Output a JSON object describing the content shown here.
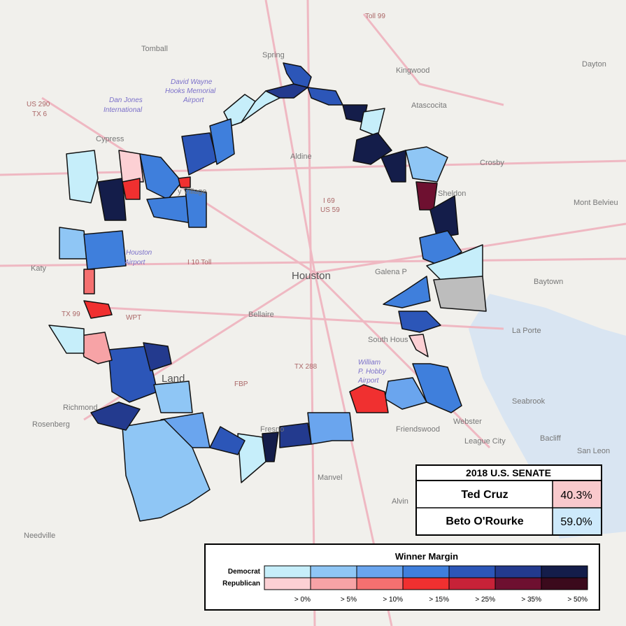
{
  "map": {
    "labels": [
      "Tomball",
      "Spring",
      "Kingwood",
      "Dayton",
      "Toll 99",
      "US 290",
      "TX 6",
      "Dan Jones",
      "International",
      "David Wayne",
      "Hooks Memorial",
      "Airport",
      "Atascocita",
      "Cypress",
      "Aldine",
      "Crosby",
      "Sheldon",
      "I 69",
      "US 59",
      "Mont Belvieu",
      "y Village",
      "Katy",
      "I 10 Toll",
      "Houston",
      "Houston",
      "Airport",
      "Galena P",
      "Baytown",
      "TX 99",
      "WPT",
      "Bellaire",
      "South Hous",
      "La Porte",
      "William",
      "P. Hobby",
      "Airport",
      "TX 288",
      "FBP",
      "Land",
      "Richmond",
      "Rosenberg",
      "Seabrook",
      "Friendswood",
      "Webster",
      "League City",
      "Bacliff",
      "San Leon",
      "Manvel",
      "Alvin",
      "Needville",
      "Fresno"
    ]
  },
  "results": {
    "title": "2018 U.S. SENATE",
    "rows": [
      [
        "Ted Cruz",
        "40.3%"
      ],
      [
        "Beto O'Rourke",
        "59.0%"
      ]
    ]
  },
  "legend": {
    "title": "Winner Margin",
    "rows": [
      "Democrat",
      "Republican"
    ],
    "labels": [
      "> 0%",
      "> 5%",
      "> 10%",
      "> 15%",
      "> 25%",
      "> 35%",
      "> 50%"
    ]
  }
}
